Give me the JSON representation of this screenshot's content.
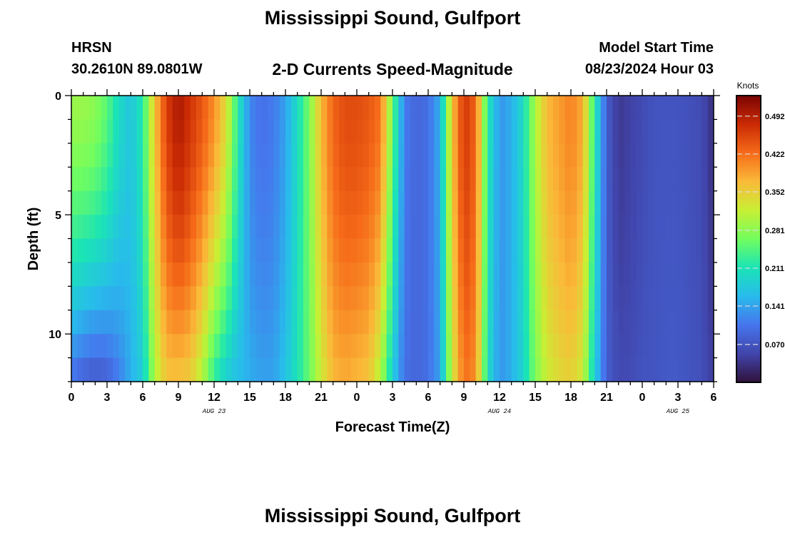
{
  "header": {
    "title": "Mississippi Sound, Gulfport",
    "station_id": "HRSN",
    "coords": "30.2610N  89.0801W",
    "product": "2-D Currents Speed-Magnitude",
    "model_label": "Model Start Time",
    "model_time": "08/23/2024 Hour 03"
  },
  "footer": {
    "title": "Mississippi Sound, Gulfport"
  },
  "chart_data": {
    "type": "heatmap",
    "title": "2-D Currents Speed-Magnitude",
    "xlabel": "Forecast Time(Z)",
    "ylabel": "Depth (ft)",
    "x_range_hours": [
      0,
      54
    ],
    "y_range_ft": [
      0,
      12
    ],
    "x_ticks": [
      {
        "hour": 0,
        "label": "0"
      },
      {
        "hour": 3,
        "label": "3"
      },
      {
        "hour": 6,
        "label": "6"
      },
      {
        "hour": 9,
        "label": "9"
      },
      {
        "hour": 12,
        "label": "12"
      },
      {
        "hour": 15,
        "label": "15"
      },
      {
        "hour": 18,
        "label": "18"
      },
      {
        "hour": 21,
        "label": "21"
      },
      {
        "hour": 24,
        "label": "0"
      },
      {
        "hour": 27,
        "label": "3"
      },
      {
        "hour": 30,
        "label": "6"
      },
      {
        "hour": 33,
        "label": "9"
      },
      {
        "hour": 36,
        "label": "12"
      },
      {
        "hour": 39,
        "label": "15"
      },
      {
        "hour": 42,
        "label": "18"
      },
      {
        "hour": 45,
        "label": "21"
      },
      {
        "hour": 48,
        "label": "0"
      },
      {
        "hour": 51,
        "label": "3"
      },
      {
        "hour": 54,
        "label": "6"
      }
    ],
    "date_labels": [
      {
        "hour": 12,
        "label": "AUG 23"
      },
      {
        "hour": 36,
        "label": "AUG 24"
      },
      {
        "hour": 51,
        "label": "AUG 25"
      }
    ],
    "y_ticks": [
      {
        "depth": 0,
        "label": "0"
      },
      {
        "depth": 5,
        "label": "5"
      },
      {
        "depth": 10,
        "label": "10"
      }
    ],
    "colorbar": {
      "unit": "Knots",
      "range": [
        0.0,
        0.53
      ],
      "ticks": [
        {
          "value": 0.07,
          "label": "0.070"
        },
        {
          "value": 0.141,
          "label": "0.141"
        },
        {
          "value": 0.211,
          "label": "0.211"
        },
        {
          "value": 0.281,
          "label": "0.281"
        },
        {
          "value": 0.352,
          "label": "0.352"
        },
        {
          "value": 0.422,
          "label": "0.422"
        },
        {
          "value": 0.492,
          "label": "0.492"
        }
      ]
    },
    "speed_profile": {
      "hours": [
        0,
        1,
        2,
        3,
        4,
        5,
        6,
        7,
        8,
        9,
        10,
        11,
        12,
        13,
        14,
        15,
        16,
        17,
        18,
        19,
        20,
        21,
        22,
        23,
        24,
        25,
        26,
        27,
        28,
        29,
        30,
        31,
        32,
        33,
        34,
        35,
        36,
        37,
        38,
        39,
        40,
        41,
        42,
        43,
        44,
        45,
        46,
        47,
        48,
        49,
        50,
        51,
        52,
        53,
        54
      ],
      "surface_knots": [
        0.29,
        0.29,
        0.28,
        0.25,
        0.2,
        0.17,
        0.22,
        0.36,
        0.46,
        0.5,
        0.47,
        0.44,
        0.4,
        0.34,
        0.22,
        0.12,
        0.1,
        0.11,
        0.14,
        0.2,
        0.27,
        0.37,
        0.43,
        0.45,
        0.45,
        0.44,
        0.42,
        0.26,
        0.11,
        0.09,
        0.1,
        0.15,
        0.36,
        0.47,
        0.43,
        0.22,
        0.13,
        0.15,
        0.2,
        0.3,
        0.37,
        0.39,
        0.41,
        0.38,
        0.22,
        0.08,
        0.04,
        0.05,
        0.06,
        0.07,
        0.07,
        0.07,
        0.065,
        0.06,
        0.03
      ],
      "bottom_knots": [
        0.1,
        0.08,
        0.07,
        0.08,
        0.11,
        0.15,
        0.18,
        0.3,
        0.36,
        0.36,
        0.35,
        0.3,
        0.22,
        0.18,
        0.16,
        0.15,
        0.14,
        0.14,
        0.17,
        0.21,
        0.26,
        0.32,
        0.37,
        0.38,
        0.37,
        0.36,
        0.3,
        0.18,
        0.1,
        0.09,
        0.1,
        0.14,
        0.32,
        0.42,
        0.4,
        0.2,
        0.13,
        0.15,
        0.19,
        0.27,
        0.32,
        0.34,
        0.35,
        0.32,
        0.18,
        0.08,
        0.06,
        0.06,
        0.07,
        0.07,
        0.075,
        0.075,
        0.07,
        0.065,
        0.045
      ]
    }
  }
}
